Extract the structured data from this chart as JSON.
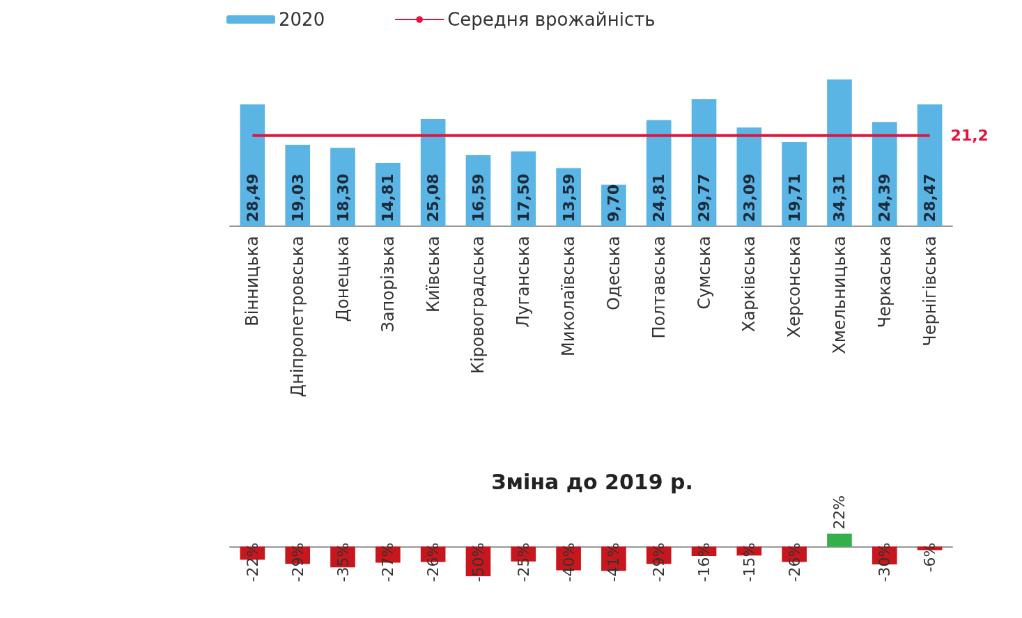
{
  "chart_data": [
    {
      "type": "bar",
      "categories": [
        "Вінницька",
        "Дніпропетровська",
        "Донецька",
        "Запорізька",
        "Київська",
        "Кіровоградська",
        "Луганська",
        "Миколаївська",
        "Одеська",
        "Полтавська",
        "Сумська",
        "Харківська",
        "Херсонська",
        "Хмельницька",
        "Черкаська",
        "Чернігівська"
      ],
      "series": [
        {
          "name": "2020",
          "type": "bar",
          "color": "#5ab4e4",
          "values": [
            28.49,
            19.03,
            18.3,
            14.81,
            25.08,
            16.59,
            17.5,
            13.59,
            9.7,
            24.81,
            29.77,
            23.09,
            19.71,
            34.31,
            24.39,
            28.47
          ],
          "value_labels": [
            "28,49",
            "19,03",
            "18,30",
            "14,81",
            "25,08",
            "16,59",
            "17,50",
            "13,59",
            "9,70",
            "24,81",
            "29,77",
            "23,09",
            "19,71",
            "34,31",
            "24,39",
            "28,47"
          ]
        },
        {
          "name": "Середня врожайність",
          "type": "line",
          "color": "#e0143c",
          "values": [
            21.2,
            21.2,
            21.2,
            21.2,
            21.2,
            21.2,
            21.2,
            21.2,
            21.2,
            21.2,
            21.2,
            21.2,
            21.2,
            21.2,
            21.2,
            21.2
          ],
          "value_labels": [
            null,
            null,
            null,
            null,
            null,
            null,
            null,
            null,
            null,
            null,
            null,
            null,
            null,
            null,
            null,
            "21,2"
          ]
        }
      ],
      "marker": "none",
      "legend": "top"
    },
    {
      "type": "bar",
      "title": "Зміна до 2019 р.",
      "categories": [
        null,
        null,
        null,
        null,
        null,
        null,
        null,
        null,
        null,
        null,
        null,
        null,
        null,
        null,
        null,
        null
      ],
      "values": [
        -22,
        -29,
        -35,
        -27,
        -26,
        -50,
        -25,
        -40,
        -41,
        -29,
        -16,
        -15,
        -26,
        22,
        -30,
        -6
      ],
      "colors": [
        "#c8161d",
        "#c8161d",
        "#c8161d",
        "#c8161d",
        "#c8161d",
        "#c8161d",
        "#c8161d",
        "#c8161d",
        "#c8161d",
        "#c8161d",
        "#c8161d",
        "#c8161d",
        "#c8161d",
        "#33b04a",
        "#c8161d",
        "#c8161d"
      ],
      "value_labels": [
        "-22%",
        "-29%",
        "-35%",
        "-27%",
        "-26%",
        "-50%",
        "-25%",
        "-40%",
        "-41%",
        "-29%",
        "-16%",
        "-15%",
        "-26%",
        "22%",
        "-30%",
        "-6%"
      ]
    }
  ]
}
